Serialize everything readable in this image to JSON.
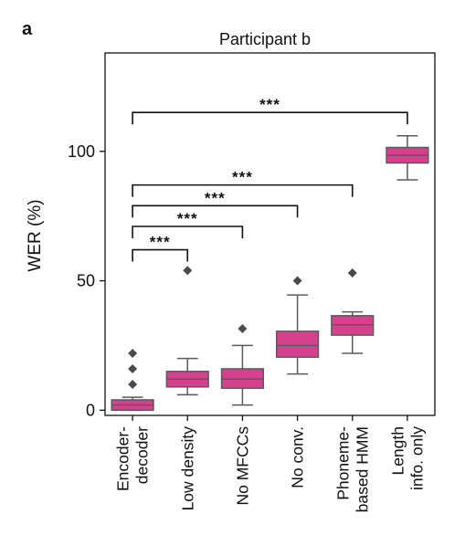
{
  "panel_letter": "a",
  "colors": {
    "box_fill": "#d6418f",
    "box_stroke": "#5a5a5a",
    "median": "#5a5a5a",
    "whisker": "#5a5a5a",
    "outlier": "#4a4a4a",
    "axis": "#111111"
  },
  "chart_data": {
    "type": "box",
    "title": "Participant b",
    "xlabel": "",
    "ylabel": "WER (%)",
    "ylim": [
      -2,
      138
    ],
    "yticks": [
      0,
      50,
      100
    ],
    "grid": false,
    "legend": "none",
    "categories": [
      [
        "Encoder-",
        "decoder"
      ],
      [
        "Low density"
      ],
      [
        "No MFCCs"
      ],
      [
        "No conv."
      ],
      [
        "Phoneme-",
        "based HMM"
      ],
      [
        "Length",
        "info. only"
      ]
    ],
    "boxes": [
      {
        "whisker_low": 0,
        "q1": 0,
        "median": 2,
        "q3": 4,
        "whisker_high": 5,
        "outliers": [
          10,
          16,
          22
        ]
      },
      {
        "whisker_low": 6,
        "q1": 9,
        "median": 12,
        "q3": 15,
        "whisker_high": 20,
        "outliers": [
          54
        ]
      },
      {
        "whisker_low": 2,
        "q1": 8.5,
        "median": 12,
        "q3": 16,
        "whisker_high": 25,
        "outliers": [
          31.5
        ]
      },
      {
        "whisker_low": 14,
        "q1": 20.5,
        "median": 25,
        "q3": 30.5,
        "whisker_high": 44.5,
        "outliers": [
          50
        ]
      },
      {
        "whisker_low": 22,
        "q1": 29,
        "median": 33,
        "q3": 36.5,
        "whisker_high": 38,
        "outliers": [
          53
        ]
      },
      {
        "whisker_low": 89,
        "q1": 95.5,
        "median": 98.5,
        "q3": 101.5,
        "whisker_high": 106,
        "outliers": []
      }
    ],
    "comparisons": [
      {
        "from": 0,
        "to": 1,
        "y": 62,
        "label": "***"
      },
      {
        "from": 0,
        "to": 2,
        "y": 71,
        "label": "***"
      },
      {
        "from": 0,
        "to": 3,
        "y": 79,
        "label": "***"
      },
      {
        "from": 0,
        "to": 4,
        "y": 87,
        "label": "***"
      },
      {
        "from": 0,
        "to": 5,
        "y": 115,
        "label": "***"
      }
    ]
  }
}
